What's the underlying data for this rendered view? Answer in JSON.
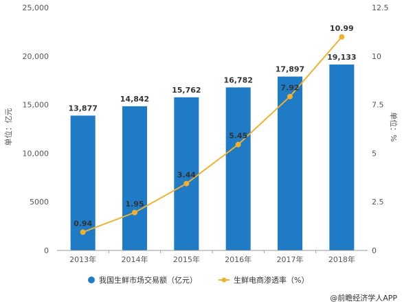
{
  "chart_data": {
    "type": "bar",
    "categories": [
      "2013年",
      "2014年",
      "2015年",
      "2016年",
      "2017年",
      "2018年"
    ],
    "series": [
      {
        "name": "我国生鲜市场交易额（亿元）",
        "type": "bar",
        "axis": "left",
        "values": [
          13877,
          14842,
          15762,
          16782,
          17897,
          19133
        ],
        "labels": [
          "13,877",
          "14,842",
          "15,762",
          "16,782",
          "17,897",
          "19,133"
        ],
        "color": "#1f7bc6"
      },
      {
        "name": "生鲜电商渗透率（%）",
        "type": "line",
        "axis": "right",
        "values": [
          0.94,
          1.95,
          3.44,
          5.45,
          7.92,
          10.99
        ],
        "labels": [
          "0.94",
          "1.95",
          "3.44",
          "5.45",
          "7.92",
          "10.99"
        ],
        "color": "#f1b12f"
      }
    ],
    "y_left": {
      "label": "单位：亿元",
      "ylim": [
        0,
        25000
      ],
      "ticks": [
        0,
        5000,
        10000,
        15000,
        20000,
        25000
      ],
      "tick_labels": [
        "0",
        "5000",
        "10,000",
        "15,000",
        "20,000",
        "25,000"
      ]
    },
    "y_right": {
      "label": "单位：%",
      "ylim": [
        0,
        12.5
      ],
      "ticks": [
        0,
        2.5,
        5,
        7.5,
        10,
        12.5
      ],
      "tick_labels": [
        "0",
        "2.5",
        "5",
        "7.5",
        "10",
        "12.5"
      ]
    },
    "grid": false,
    "legend": "bottom"
  },
  "footer": {
    "source": "@前瞻经济学人APP"
  }
}
